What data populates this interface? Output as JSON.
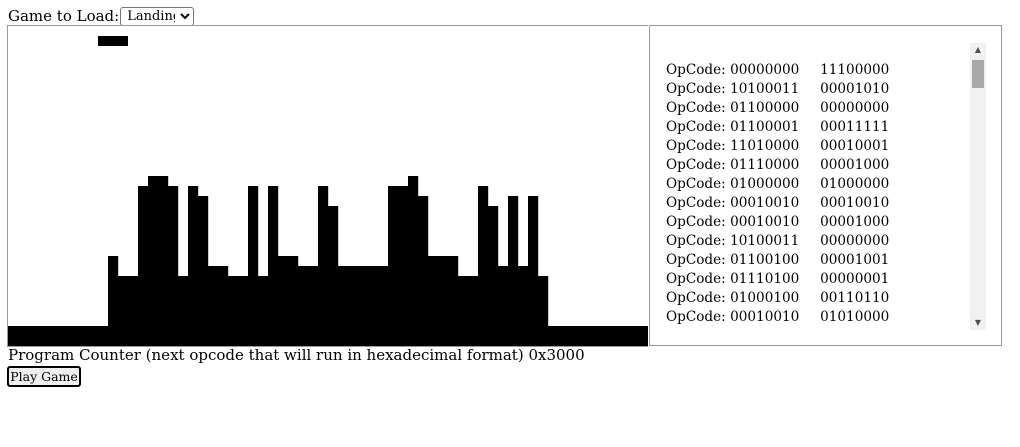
{
  "loader": {
    "label": "Game to Load:",
    "selected_game": "Landing"
  },
  "display": {
    "foreground_color": "#000000",
    "background_color": "#ffffff",
    "ground_height": 2,
    "buildings": [
      {
        "col": 10,
        "top": 23
      },
      {
        "col": 11,
        "top": 25
      },
      {
        "col": 12,
        "top": 25
      },
      {
        "col": 13,
        "top": 16
      },
      {
        "col": 14,
        "top": 15
      },
      {
        "col": 15,
        "top": 15
      },
      {
        "col": 16,
        "top": 16
      },
      {
        "col": 17,
        "top": 25
      },
      {
        "col": 18,
        "top": 16
      },
      {
        "col": 19,
        "top": 17
      },
      {
        "col": 20,
        "top": 24
      },
      {
        "col": 21,
        "top": 24
      },
      {
        "col": 22,
        "top": 25
      },
      {
        "col": 23,
        "top": 25
      },
      {
        "col": 24,
        "top": 16
      },
      {
        "col": 25,
        "top": 25
      },
      {
        "col": 26,
        "top": 16
      },
      {
        "col": 27,
        "top": 23
      },
      {
        "col": 28,
        "top": 23
      },
      {
        "col": 29,
        "top": 24
      },
      {
        "col": 30,
        "top": 24
      },
      {
        "col": 31,
        "top": 16
      },
      {
        "col": 32,
        "top": 18
      },
      {
        "col": 33,
        "top": 24
      },
      {
        "col": 34,
        "top": 24
      },
      {
        "col": 35,
        "top": 24
      },
      {
        "col": 36,
        "top": 24
      },
      {
        "col": 37,
        "top": 24
      },
      {
        "col": 38,
        "top": 16
      },
      {
        "col": 39,
        "top": 16
      },
      {
        "col": 40,
        "top": 15
      },
      {
        "col": 41,
        "top": 17
      },
      {
        "col": 42,
        "top": 23
      },
      {
        "col": 43,
        "top": 23
      },
      {
        "col": 44,
        "top": 23
      },
      {
        "col": 45,
        "top": 25
      },
      {
        "col": 46,
        "top": 25
      },
      {
        "col": 47,
        "top": 16
      },
      {
        "col": 48,
        "top": 18
      },
      {
        "col": 49,
        "top": 24
      },
      {
        "col": 50,
        "top": 17
      },
      {
        "col": 51,
        "top": 24
      },
      {
        "col": 52,
        "top": 17
      },
      {
        "col": 53,
        "top": 25
      }
    ],
    "plane": {
      "col": 9,
      "row": 1,
      "width": 3
    }
  },
  "opcodes": [
    {
      "label": "OpCode:",
      "byte1": "00000000",
      "byte2": "11100000"
    },
    {
      "label": "OpCode:",
      "byte1": "10100011",
      "byte2": "00001010"
    },
    {
      "label": "OpCode:",
      "byte1": "01100000",
      "byte2": "00000000"
    },
    {
      "label": "OpCode:",
      "byte1": "01100001",
      "byte2": "00011111"
    },
    {
      "label": "OpCode:",
      "byte1": "11010000",
      "byte2": "00010001"
    },
    {
      "label": "OpCode:",
      "byte1": "01110000",
      "byte2": "00001000"
    },
    {
      "label": "OpCode:",
      "byte1": "01000000",
      "byte2": "01000000"
    },
    {
      "label": "OpCode:",
      "byte1": "00010010",
      "byte2": "00010010"
    },
    {
      "label": "OpCode:",
      "byte1": "00010010",
      "byte2": "00001000"
    },
    {
      "label": "OpCode:",
      "byte1": "10100011",
      "byte2": "00000000"
    },
    {
      "label": "OpCode:",
      "byte1": "01100100",
      "byte2": "00001001"
    },
    {
      "label": "OpCode:",
      "byte1": "01110100",
      "byte2": "00000001"
    },
    {
      "label": "OpCode:",
      "byte1": "01000100",
      "byte2": "00110110"
    },
    {
      "label": "OpCode:",
      "byte1": "00010010",
      "byte2": "01010000"
    }
  ],
  "scrollbar": {
    "up_icon": "▲",
    "down_icon": "▼"
  },
  "status": {
    "program_counter_text": "Program Counter (next opcode that will run in hexadecimal format) 0x3000"
  },
  "controls": {
    "play_label": "Play Game"
  }
}
